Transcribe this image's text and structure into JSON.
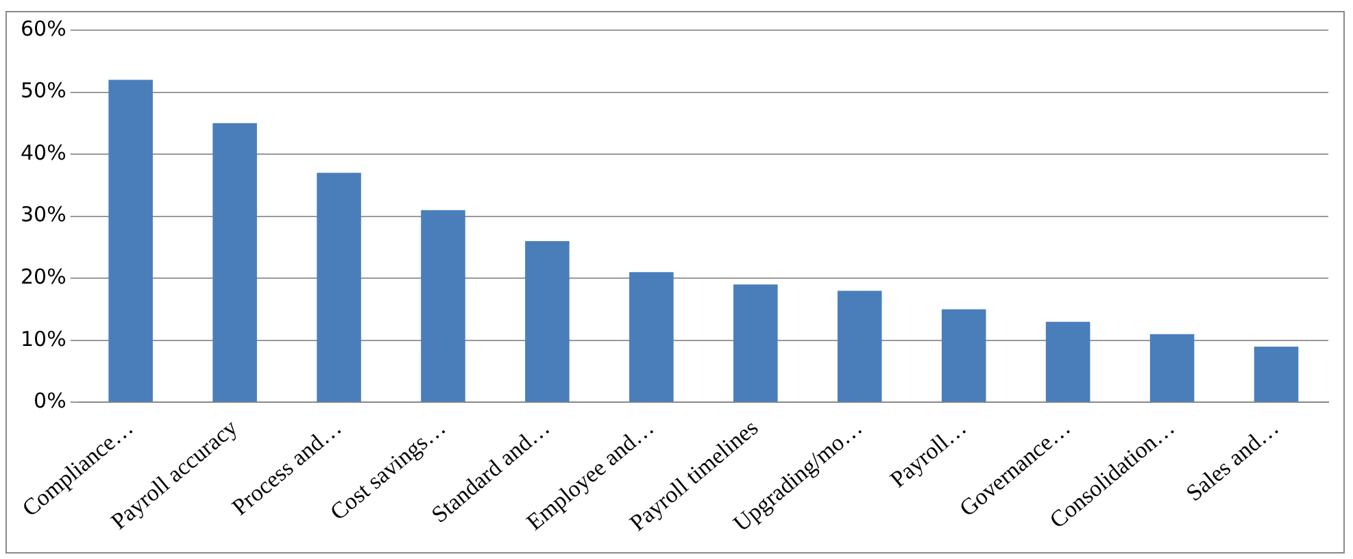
{
  "chart_data": {
    "type": "bar",
    "categories": [
      "Compliance…",
      "Payroll accuracy",
      "Process and…",
      "Cost savings…",
      "Standard and…",
      "Employee and…",
      "Payroll timelines",
      "Upgrading/mo…",
      "Payroll…",
      "Governance…",
      "Consolidation…",
      "Sales and…"
    ],
    "values": [
      52,
      45,
      37,
      31,
      26,
      21,
      19,
      18,
      15,
      13,
      11,
      9
    ],
    "color": "#4a7ebb",
    "ylim": [
      0,
      60
    ],
    "yticks": [
      {
        "value": 0,
        "label": "0%"
      },
      {
        "value": 10,
        "label": "10%"
      },
      {
        "value": 20,
        "label": "20%"
      },
      {
        "value": 30,
        "label": "30%"
      },
      {
        "value": 40,
        "label": "40%"
      },
      {
        "value": 50,
        "label": "50%"
      },
      {
        "value": 60,
        "label": "60%"
      }
    ],
    "grid": "y",
    "legend": false
  }
}
